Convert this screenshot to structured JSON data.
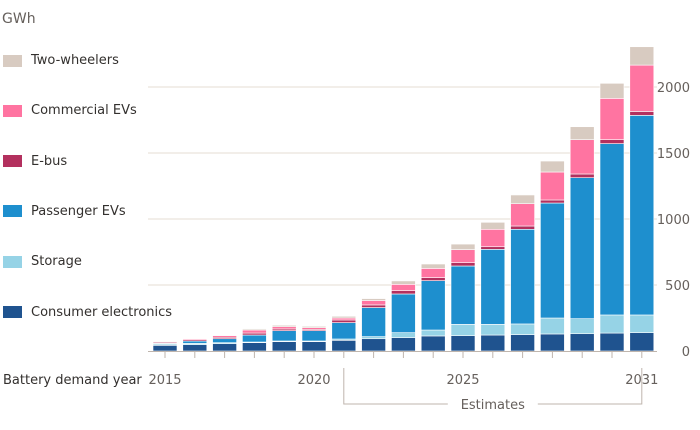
{
  "chart_data": {
    "type": "bar",
    "stacked": true,
    "ylabel": "GWh",
    "xlabel": "Battery demand year",
    "annotation": "Estimates",
    "annotation_range": [
      2021,
      2031
    ],
    "ylim": [
      0,
      2300
    ],
    "yticks": [
      0,
      500,
      1000,
      1500,
      2000
    ],
    "xticks": [
      "2015",
      "2020",
      "2025",
      "2031"
    ],
    "grid": true,
    "legend_position": "left",
    "categories": [
      "2015",
      "2016",
      "2017",
      "2018",
      "2019",
      "2020",
      "2021",
      "2022",
      "2023",
      "2024",
      "2025",
      "2026",
      "2027",
      "2028",
      "2029",
      "2030",
      "2031"
    ],
    "series": [
      {
        "name": "Consumer electronics",
        "color": "#1f538f",
        "values": [
          43,
          48,
          56,
          63,
          71,
          71,
          81,
          93,
          101,
          114,
          116,
          121,
          124,
          129,
          131,
          136,
          139
        ]
      },
      {
        "name": "Storage",
        "color": "#96d3e6",
        "values": [
          10,
          10,
          7,
          5,
          5,
          5,
          10,
          16,
          38,
          45,
          86,
          81,
          81,
          121,
          114,
          137,
          134
        ]
      },
      {
        "name": "Passenger EVs",
        "color": "#1e8fce",
        "values": [
          5,
          18,
          30,
          53,
          78,
          78,
          124,
          220,
          293,
          374,
          442,
          568,
          717,
          871,
          1068,
          1298,
          1512
        ]
      },
      {
        "name": "E-bus",
        "color": "#b3305e",
        "values": [
          8,
          10,
          11,
          15,
          13,
          10,
          20,
          20,
          25,
          23,
          25,
          20,
          25,
          23,
          28,
          30,
          30
        ]
      },
      {
        "name": "Commercial EVs",
        "color": "#ff74a1",
        "values": [
          5,
          7,
          12,
          23,
          17,
          13,
          15,
          33,
          48,
          70,
          99,
          132,
          169,
          212,
          260,
          313,
          351
        ]
      },
      {
        "name": "Two-wheelers",
        "color": "#d8cbc1",
        "values": [
          2,
          3,
          5,
          8,
          11,
          10,
          13,
          15,
          26,
          33,
          42,
          53,
          66,
          83,
          98,
          114,
          139
        ]
      }
    ]
  }
}
